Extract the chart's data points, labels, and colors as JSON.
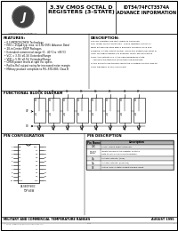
{
  "title_center_1": "3.3V CMOS OCTAL D",
  "title_center_2": "REGISTERS (3-STATE)",
  "title_right_1": "IDT54/74FCT3574A",
  "title_right_2": "ADVANCE INFORMATION",
  "logo_text": "Integrated Device Technology, Inc.",
  "features_title": "FEATURES:",
  "features": [
    "0.5 MICRON CMOS Technology",
    "ISSI = 250μA typ. max. at 5.0v (ISSI: Advance Data)",
    "28-in Center SSOP Packages",
    "Extended commercial range (0 - 40°C to +85°C)",
    "VCC = 3.3V ±0.3V, Extended Range",
    "VDD = 5.0V ±0.5V, Extended Range",
    "CMOS power levels at split Vcc specs",
    "Rail-to-Rail output swing for increased noise margin",
    "Military product compliant to MIL-STD-883, Class B"
  ],
  "desc_title": "DESCRIPTION:",
  "desc_lines": [
    "The IDT registers are built using an advanced",
    "dual metal CMOS technology.  These registers consist of",
    "eight D-type flip-flops with a buffered common clock and",
    "buffered 3-state output control. When the output (OE) input is",
    "LOW, the eight outputs are enabled. When the OE input is",
    "HIGH, the outputs are in the high-impedance state.",
    "   The data meeting the setup time requirements",
    "of the D inputs are transferred to the Q outputs on the LOW-to-",
    "HIGH transition of the clock input."
  ],
  "block_diagram_title": "FUNCTIONAL BLOCK DIAGRAM",
  "pin_config_title": "PIN CONFIGURATION",
  "pin_desc_title": "PIN DESCRIPTION",
  "pin_table_headers": [
    "Pin Name",
    "Description"
  ],
  "pin_table_rows": [
    [
      "CLK",
      "Clock. Rising edge triggered."
    ],
    [
      "D0-D7",
      "Inputs transfers the register D-state data to Q0-Q7 on HIGH transition."
    ],
    [
      "Qn",
      "3-state outputs, (true)"
    ],
    [
      "Qn",
      "3-state outputs, (inverted)"
    ],
    [
      "OE",
      "Active LOW 3-state Output Enable input"
    ]
  ],
  "left_pins": [
    "OE",
    "D0",
    "D1",
    "D2",
    "D3",
    "D4",
    "D5",
    "D6",
    "D7",
    "GND"
  ],
  "left_pin_nums": [
    1,
    2,
    3,
    4,
    5,
    6,
    7,
    8,
    9,
    10
  ],
  "right_pins": [
    "VCC",
    "Q7",
    "Q6",
    "Q5",
    "Q4",
    "Q3",
    "Q2",
    "Q1",
    "Q0",
    "CLK"
  ],
  "right_pin_nums": [
    28,
    27,
    26,
    25,
    24,
    23,
    22,
    21,
    20,
    19
  ],
  "footer_left": "MILITARY AND COMMERCIAL TEMPERATURE RANGES",
  "footer_right": "AUGUST 1995",
  "bg_color": "#ffffff",
  "border_color": "#000000",
  "text_color": "#000000",
  "table_header_bg": "#b0b0b0"
}
